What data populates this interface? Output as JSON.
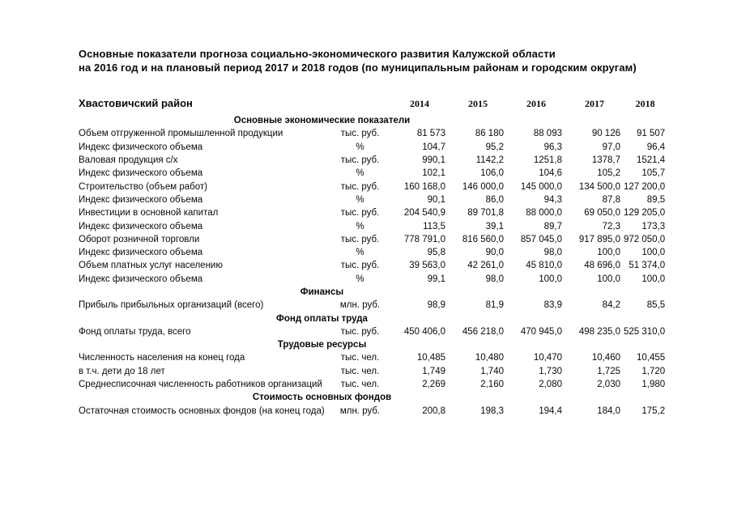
{
  "title": {
    "line1": "Основные показатели прогноза социально-экономического развития Калужской области",
    "line2": "на 2016 год и на плановый период  2017 и 2018 годов (по муниципальным районам и городским округам)"
  },
  "table": {
    "district": "Хвастовичский район",
    "years": [
      "2014",
      "2015",
      "2016",
      "2017",
      "2018"
    ],
    "rows": [
      {
        "type": "section",
        "label": "Основные экономические показатели"
      },
      {
        "type": "data",
        "name": "Объем отгруженной промышленной продукции",
        "unit": "тыс. руб.",
        "values": [
          "81 573",
          "86 180",
          "88 093",
          "90 126",
          "91 507"
        ]
      },
      {
        "type": "data",
        "name": "Индекс физического объема",
        "unit": "%",
        "values": [
          "104,7",
          "95,2",
          "96,3",
          "97,0",
          "96,4"
        ]
      },
      {
        "type": "data",
        "name": "Валовая продукция с/х",
        "unit": "тыс. руб.",
        "values": [
          "990,1",
          "1142,2",
          "1251,8",
          "1378,7",
          "1521,4"
        ]
      },
      {
        "type": "data",
        "name": "Индекс физического объема",
        "unit": "%",
        "values": [
          "102,1",
          "106,0",
          "104,6",
          "105,2",
          "105,7"
        ]
      },
      {
        "type": "data",
        "name": "Строительство (объем работ)",
        "unit": "тыс. руб.",
        "values": [
          "160 168,0",
          "146 000,0",
          "145 000,0",
          "134 500,0",
          "127 200,0"
        ]
      },
      {
        "type": "data",
        "name": "Индекс физического объема",
        "unit": "%",
        "values": [
          "90,1",
          "86,0",
          "94,3",
          "87,8",
          "89,5"
        ]
      },
      {
        "type": "data",
        "name": "Инвестиции в основной капитал",
        "unit": "тыс. руб.",
        "values": [
          "204 540,9",
          "89 701,8",
          "88 000,0",
          "69 050,0",
          "129 205,0"
        ]
      },
      {
        "type": "data",
        "name": "Индекс физического объема",
        "unit": "%",
        "values": [
          "113,5",
          "39,1",
          "89,7",
          "72,3",
          "173,3"
        ]
      },
      {
        "type": "data",
        "name": "Оборот розничной торговли",
        "unit": "тыс. руб.",
        "values": [
          "778 791,0",
          "816 560,0",
          "857 045,0",
          "917 895,0",
          "972 050,0"
        ]
      },
      {
        "type": "data",
        "name": "Индекс физического объема",
        "unit": "%",
        "values": [
          "95,8",
          "90,0",
          "98,0",
          "100,0",
          "100,0"
        ]
      },
      {
        "type": "data",
        "name": "Объем платных услуг населению",
        "unit": "тыс. руб.",
        "values": [
          "39 563,0",
          "42 261,0",
          "45 810,0",
          "48 696,0",
          "51 374,0"
        ]
      },
      {
        "type": "data",
        "name": "Индекс физического объема",
        "unit": "%",
        "values": [
          "99,1",
          "98,0",
          "100,0",
          "100,0",
          "100,0"
        ]
      },
      {
        "type": "section",
        "label": "Финансы"
      },
      {
        "type": "data",
        "name": "Прибыль прибыльных организаций (всего)",
        "unit": "млн. руб.",
        "values": [
          "98,9",
          "81,9",
          "83,9",
          "84,2",
          "85,5"
        ]
      },
      {
        "type": "section",
        "label": "Фонд оплаты труда"
      },
      {
        "type": "data",
        "name": "Фонд оплаты труда, всего",
        "unit": "тыс. руб.",
        "values": [
          "450 406,0",
          "456 218,0",
          "470 945,0",
          "498 235,0",
          "525 310,0"
        ]
      },
      {
        "type": "section",
        "label": "Трудовые ресурсы"
      },
      {
        "type": "data",
        "name": "Численность населения на конец года",
        "unit": "тыс. чел.",
        "values": [
          "10,485",
          "10,480",
          "10,470",
          "10,460",
          "10,455"
        ]
      },
      {
        "type": "data",
        "name": "в т.ч. дети до 18 лет",
        "unit": "тыс. чел.",
        "values": [
          "1,749",
          "1,740",
          "1,730",
          "1,725",
          "1,720"
        ]
      },
      {
        "type": "data",
        "name": "Среднесписочная численность работников организаций",
        "unit": "тыс. чел.",
        "values": [
          "2,269",
          "2,160",
          "2,080",
          "2,030",
          "1,980"
        ]
      },
      {
        "type": "section",
        "label": "Стоимость основных фондов"
      },
      {
        "type": "data",
        "name": "Остаточная стоимость основных фондов (на конец года)",
        "unit": "млн. руб.",
        "values": [
          "200,8",
          "198,3",
          "194,4",
          "184,0",
          "175,2"
        ]
      }
    ]
  }
}
